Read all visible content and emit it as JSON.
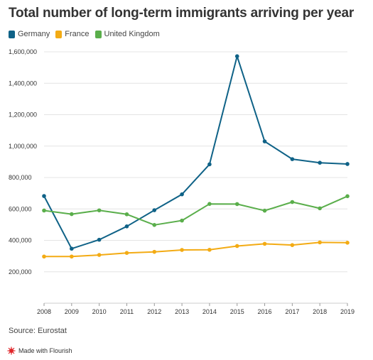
{
  "title": "Total number of long-term immigrants arriving per year",
  "source": "Source: Eurostat",
  "footer": "Made with Flourish",
  "chart_data": {
    "type": "line",
    "title": "Total number of long-term immigrants arriving per year",
    "x": [
      "2008",
      "2009",
      "2010",
      "2011",
      "2012",
      "2013",
      "2014",
      "2015",
      "2016",
      "2017",
      "2018",
      "2019"
    ],
    "ylim": [
      0,
      1600000
    ],
    "yticks": [
      200000,
      400000,
      600000,
      800000,
      1000000,
      1200000,
      1400000,
      1600000
    ],
    "ytick_labels": [
      "200,000",
      "400,000",
      "600,000",
      "800,000",
      "1,000,000",
      "1,200,000",
      "1,400,000",
      "1,600,000"
    ],
    "grid": true,
    "legend_position": "top-left",
    "series": [
      {
        "name": "Germany",
        "color": "#0f6287",
        "values": [
          682000,
          347000,
          404000,
          489000,
          592000,
          693000,
          884000,
          1572000,
          1030000,
          917000,
          894000,
          886000
        ]
      },
      {
        "name": "France",
        "color": "#f3ab14",
        "values": [
          297000,
          297000,
          307000,
          320000,
          327000,
          339000,
          340000,
          364000,
          378000,
          370000,
          387000,
          385000
        ]
      },
      {
        "name": "United Kingdom",
        "color": "#5aae4b",
        "values": [
          590000,
          567000,
          591000,
          566000,
          498000,
          526000,
          632000,
          631000,
          589000,
          644000,
          604000,
          681000
        ]
      }
    ]
  }
}
